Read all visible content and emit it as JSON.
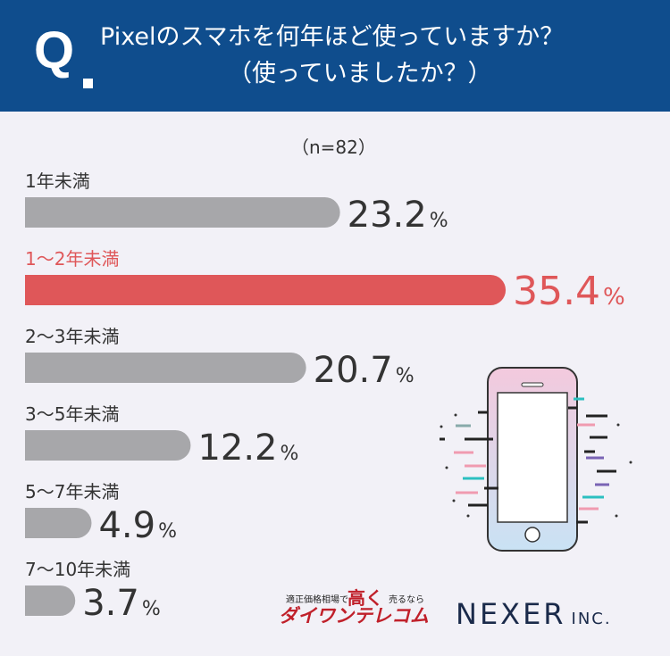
{
  "header": {
    "q_mark": "Q",
    "title_line1": "Pixelのスマホを何年ほど使っていますか？",
    "title_line2": "（使っていましたか？）"
  },
  "n_label": "（n=82）",
  "chart_data": {
    "type": "bar",
    "orientation": "horizontal",
    "categories": [
      "1年未満",
      "1〜2年未満",
      "2〜3年未満",
      "3〜5年未満",
      "5〜7年未満",
      "7〜10年未満"
    ],
    "values": [
      23.2,
      35.4,
      20.7,
      12.2,
      4.9,
      3.7
    ],
    "value_suffix": "%",
    "highlight_index": 1,
    "colors": {
      "bar": "#a7a7aa",
      "highlight": "#df5759",
      "label": "#333333"
    },
    "grid": false
  },
  "logos": {
    "daiwan_small": "適正価格相場で",
    "daiwan_big": "高く",
    "daiwan_small2": "売るなら",
    "daiwan_brand": "ダイワンテレコム",
    "nexer": "NEXER",
    "nexer_inc": "INC."
  }
}
